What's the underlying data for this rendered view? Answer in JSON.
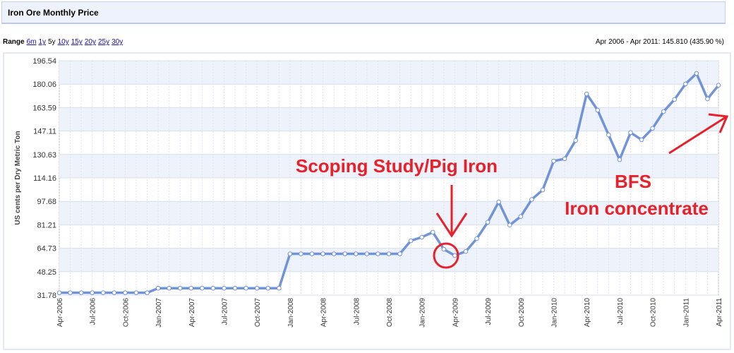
{
  "header": {
    "title": "Iron Ore Monthly Price"
  },
  "range": {
    "label": "Range",
    "options": [
      "6m",
      "1y",
      "5y",
      "10y",
      "15y",
      "20y",
      "25y",
      "30y"
    ],
    "selected": 2,
    "summary": "Apr 2006 - Apr 2011: 145.810 (435.90 %)"
  },
  "chart_data": {
    "type": "line",
    "ylabel": "US cents per Dry Metric Ton",
    "categories": [
      "Apr-2006",
      null,
      null,
      "Jul-2006",
      null,
      null,
      "Oct-2006",
      null,
      null,
      "Jan-2007",
      null,
      null,
      "Apr-2007",
      null,
      null,
      "Jul-2007",
      null,
      null,
      "Oct-2007",
      null,
      null,
      "Jan-2008",
      null,
      null,
      "Apr-2008",
      null,
      null,
      "Jul-2008",
      null,
      null,
      "Oct-2008",
      null,
      null,
      "Jan-2009",
      null,
      null,
      "Apr-2009",
      null,
      null,
      "Jul-2009",
      null,
      null,
      "Oct-2009",
      null,
      null,
      "Jan-2010",
      null,
      null,
      "Apr-2010",
      null,
      null,
      "Jul-2010",
      null,
      null,
      "Oct-2010",
      null,
      null,
      "Jan-2011",
      null,
      null,
      "Apr-2011"
    ],
    "values": [
      33.45,
      33.45,
      33.45,
      33.45,
      33.45,
      33.45,
      33.45,
      33.45,
      33.45,
      36.63,
      36.63,
      36.63,
      36.63,
      36.63,
      36.63,
      36.63,
      36.63,
      36.63,
      36.63,
      36.63,
      36.63,
      60.8,
      60.8,
      60.8,
      60.8,
      60.8,
      60.8,
      60.8,
      60.8,
      60.8,
      60.8,
      60.8,
      70,
      72.5,
      76,
      64,
      59.6,
      62.5,
      71.5,
      83,
      97.3,
      81,
      87,
      99,
      105.7,
      126,
      127.6,
      140.5,
      173.2,
      161.8,
      144.4,
      127,
      146,
      141,
      149,
      160.8,
      169.3,
      180.2,
      187.6,
      169.7,
      179.26
    ],
    "color": "#7093d9",
    "ylim": [
      31.78,
      196.54
    ],
    "yticks": [
      31.78,
      48.25,
      64.73,
      81.21,
      97.68,
      114.16,
      130.63,
      147.11,
      163.59,
      180.06,
      196.54
    ],
    "grid": true,
    "annotations": [
      "Scoping Study/Pig Iron",
      "BFS",
      "Iron concentrate"
    ],
    "annotation_color": "#e8202a"
  }
}
